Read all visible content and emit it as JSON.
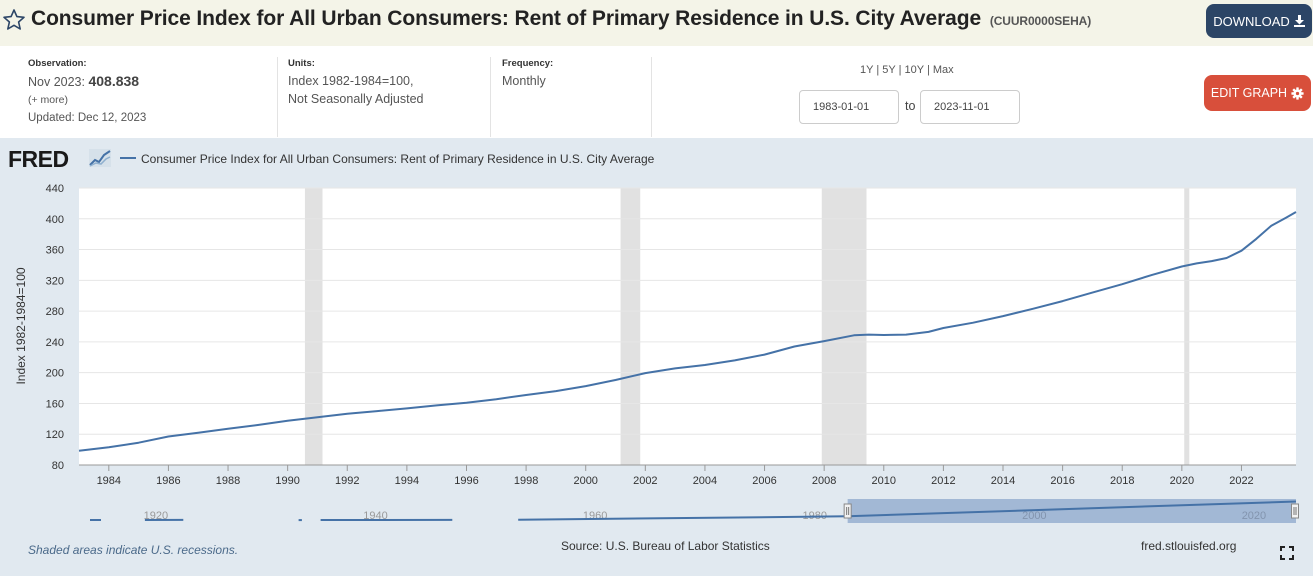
{
  "header": {
    "title": "Consumer Price Index for All Urban Consumers: Rent of Primary Residence in U.S. City Average",
    "series_id": "(CUUR0000SEHA)",
    "download_label": "DOWNLOAD"
  },
  "meta": {
    "observation_label": "Observation:",
    "observation_date": "Nov 2023:",
    "observation_value": "408.838",
    "more_label": "(+ more)",
    "updated": "Updated: Dec 12, 2023",
    "units_label": "Units:",
    "units_line1": "Index 1982-1984=100,",
    "units_line2": "Not Seasonally Adjusted",
    "frequency_label": "Frequency:",
    "frequency": "Monthly",
    "range_1y": "1Y",
    "range_5y": "5Y",
    "range_10y": "10Y",
    "range_max": "Max",
    "range_sep": "|",
    "start_date": "1983-01-01",
    "end_date": "2023-11-01",
    "to_label": "to",
    "edit_label": "EDIT GRAPH"
  },
  "footer": {
    "recession_note": "Shaded areas indicate U.S. recessions.",
    "source": "Source: U.S. Bureau of Labor Statistics",
    "site": "fred.stlouisfed.org"
  },
  "colors": {
    "line": "#4572a7",
    "recession": "#e1e1e1",
    "header_bg": "#f4f4e8",
    "chart_bg": "#e1e9f0",
    "download": "#2c4566",
    "edit": "#d84f3b"
  },
  "chart_data": {
    "type": "line",
    "title": "",
    "logo": "FRED",
    "legend": "Consumer Price Index for All Urban Consumers: Rent of Primary Residence in U.S. City Average",
    "xlabel": "",
    "ylabel": "Index 1982-1984=100",
    "xlim": [
      1983.0,
      2023.83
    ],
    "ylim": [
      80,
      440
    ],
    "yticks": [
      80,
      120,
      160,
      200,
      240,
      280,
      320,
      360,
      400,
      440
    ],
    "xticks": [
      1984,
      1986,
      1988,
      1990,
      1992,
      1994,
      1996,
      1998,
      2000,
      2002,
      2004,
      2006,
      2008,
      2010,
      2012,
      2014,
      2016,
      2018,
      2020,
      2022
    ],
    "recessions": [
      [
        1990.58,
        1991.17
      ],
      [
        2001.17,
        2001.83
      ],
      [
        2007.92,
        2009.42
      ],
      [
        2020.08,
        2020.25
      ]
    ],
    "series": [
      {
        "name": "Consumer Price Index for All Urban Consumers: Rent of Primary Residence in U.S. City Average",
        "x": [
          1983.0,
          1984.0,
          1985.0,
          1986.0,
          1987.0,
          1988.0,
          1989.0,
          1990.0,
          1991.0,
          1992.0,
          1993.0,
          1994.0,
          1995.0,
          1996.0,
          1997.0,
          1998.0,
          1999.0,
          2000.0,
          2001.0,
          2002.0,
          2003.0,
          2004.0,
          2005.0,
          2006.0,
          2007.0,
          2008.0,
          2009.0,
          2009.5,
          2010.0,
          2010.75,
          2011.5,
          2012.0,
          2013.0,
          2014.0,
          2015.0,
          2016.0,
          2017.0,
          2018.0,
          2019.0,
          2020.0,
          2020.5,
          2021.0,
          2021.5,
          2022.0,
          2022.5,
          2023.0,
          2023.5,
          2023.83
        ],
        "values": [
          98.5,
          103.0,
          109.0,
          117.0,
          122.0,
          127.0,
          132.0,
          137.5,
          142.0,
          146.5,
          150.0,
          153.5,
          157.5,
          161.0,
          165.5,
          171.0,
          176.0,
          182.5,
          190.5,
          199.5,
          205.5,
          210.0,
          216.0,
          223.5,
          234.0,
          241.0,
          248.5,
          249.5,
          249.0,
          249.5,
          253.0,
          258.0,
          265.0,
          273.5,
          283.0,
          293.0,
          304.0,
          315.0,
          327.0,
          338.0,
          342.0,
          345.0,
          349.0,
          358.5,
          374.0,
          391.0,
          401.5,
          408.8
        ]
      }
    ],
    "navigator": {
      "axis_labels": [
        "1920",
        "1940",
        "1960",
        "1980",
        "2000",
        "2020"
      ],
      "xlim": [
        1913.0,
        2023.83
      ],
      "selected": [
        1983.0,
        2023.83
      ],
      "segments": [
        {
          "x": [
            1914.0,
            1915.0
          ],
          "values": [
            20,
            20
          ]
        },
        {
          "x": [
            1919.0,
            1922.5
          ],
          "values": [
            22,
            23
          ]
        },
        {
          "x": [
            1933.0,
            1933.3
          ],
          "values": [
            19,
            19
          ]
        },
        {
          "x": [
            1935.0,
            1947.0
          ],
          "values": [
            20,
            24
          ]
        },
        {
          "x": [
            1953.0,
            1983.0
          ],
          "values": [
            25,
            98
          ]
        },
        {
          "x": [
            1983.0,
            2023.83
          ],
          "values": [
            98,
            409
          ]
        }
      ]
    },
    "grid": true,
    "legend_position": "top-left"
  }
}
